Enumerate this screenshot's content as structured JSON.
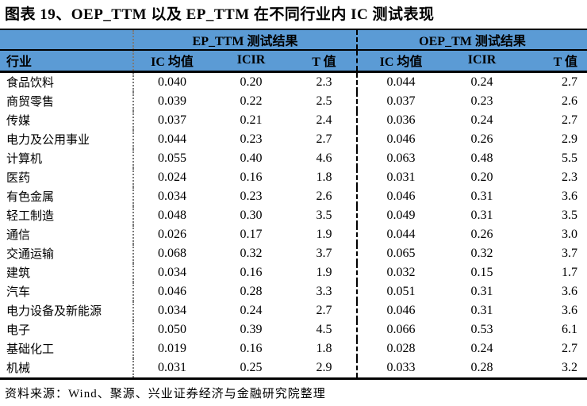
{
  "title": "图表 19、OEP_TTM 以及 EP_TTM 在不同行业内 IC 测试表现",
  "table": {
    "industry_header": "行业",
    "group_headers": {
      "ep": "EP_TTM 测试结果",
      "oep": "OEP_TM 测试结果"
    },
    "sub_headers": {
      "ep": [
        "IC 均值",
        "ICIR",
        "T 值"
      ],
      "oep": [
        "IC 均值",
        "ICIR",
        "T 值"
      ]
    },
    "rows": [
      {
        "industry": "食品饮料",
        "ep": [
          "0.040",
          "0.20",
          "2.3"
        ],
        "oep": [
          "0.044",
          "0.24",
          "2.7"
        ]
      },
      {
        "industry": "商贸零售",
        "ep": [
          "0.039",
          "0.22",
          "2.5"
        ],
        "oep": [
          "0.037",
          "0.23",
          "2.6"
        ]
      },
      {
        "industry": "传媒",
        "ep": [
          "0.037",
          "0.21",
          "2.4"
        ],
        "oep": [
          "0.036",
          "0.24",
          "2.7"
        ]
      },
      {
        "industry": "电力及公用事业",
        "ep": [
          "0.044",
          "0.23",
          "2.7"
        ],
        "oep": [
          "0.046",
          "0.26",
          "2.9"
        ]
      },
      {
        "industry": "计算机",
        "ep": [
          "0.055",
          "0.40",
          "4.6"
        ],
        "oep": [
          "0.063",
          "0.48",
          "5.5"
        ]
      },
      {
        "industry": "医药",
        "ep": [
          "0.024",
          "0.16",
          "1.8"
        ],
        "oep": [
          "0.031",
          "0.20",
          "2.3"
        ]
      },
      {
        "industry": "有色金属",
        "ep": [
          "0.034",
          "0.23",
          "2.6"
        ],
        "oep": [
          "0.046",
          "0.31",
          "3.6"
        ]
      },
      {
        "industry": "轻工制造",
        "ep": [
          "0.048",
          "0.30",
          "3.5"
        ],
        "oep": [
          "0.049",
          "0.31",
          "3.5"
        ]
      },
      {
        "industry": "通信",
        "ep": [
          "0.026",
          "0.17",
          "1.9"
        ],
        "oep": [
          "0.044",
          "0.26",
          "3.0"
        ]
      },
      {
        "industry": "交通运输",
        "ep": [
          "0.068",
          "0.32",
          "3.7"
        ],
        "oep": [
          "0.065",
          "0.32",
          "3.7"
        ]
      },
      {
        "industry": "建筑",
        "ep": [
          "0.034",
          "0.16",
          "1.9"
        ],
        "oep": [
          "0.032",
          "0.15",
          "1.7"
        ]
      },
      {
        "industry": "汽车",
        "ep": [
          "0.046",
          "0.28",
          "3.3"
        ],
        "oep": [
          "0.051",
          "0.31",
          "3.6"
        ]
      },
      {
        "industry": "电力设备及新能源",
        "ep": [
          "0.034",
          "0.24",
          "2.7"
        ],
        "oep": [
          "0.046",
          "0.31",
          "3.6"
        ]
      },
      {
        "industry": "电子",
        "ep": [
          "0.050",
          "0.39",
          "4.5"
        ],
        "oep": [
          "0.066",
          "0.53",
          "6.1"
        ]
      },
      {
        "industry": "基础化工",
        "ep": [
          "0.019",
          "0.16",
          "1.8"
        ],
        "oep": [
          "0.028",
          "0.24",
          "2.7"
        ]
      },
      {
        "industry": "机械",
        "ep": [
          "0.031",
          "0.25",
          "2.9"
        ],
        "oep": [
          "0.033",
          "0.28",
          "3.2"
        ]
      }
    ]
  },
  "source_note": "资料来源：Wind、聚源、兴业证券经济与金融研究院整理",
  "colors": {
    "header_bg": "#5B9BD5",
    "border": "#000000",
    "text": "#000000"
  }
}
